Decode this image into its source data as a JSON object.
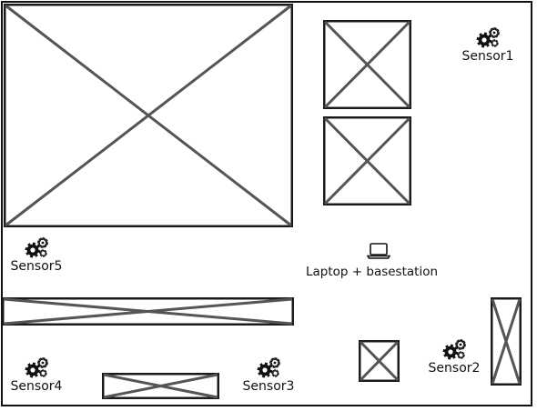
{
  "diagram": {
    "sensors": [
      {
        "label": "Sensor1",
        "icon": "gears-icon"
      },
      {
        "label": "Sensor2",
        "icon": "gears-icon"
      },
      {
        "label": "Sensor3",
        "icon": "gears-icon"
      },
      {
        "label": "Sensor4",
        "icon": "gears-icon"
      },
      {
        "label": "Sensor5",
        "icon": "gears-icon"
      }
    ],
    "laptop": {
      "label": "Laptop + basestation",
      "icon": "laptop-icon"
    },
    "colors": {
      "stroke": "#1a1a1a",
      "cross": "#555555",
      "background": "#ffffff"
    }
  }
}
